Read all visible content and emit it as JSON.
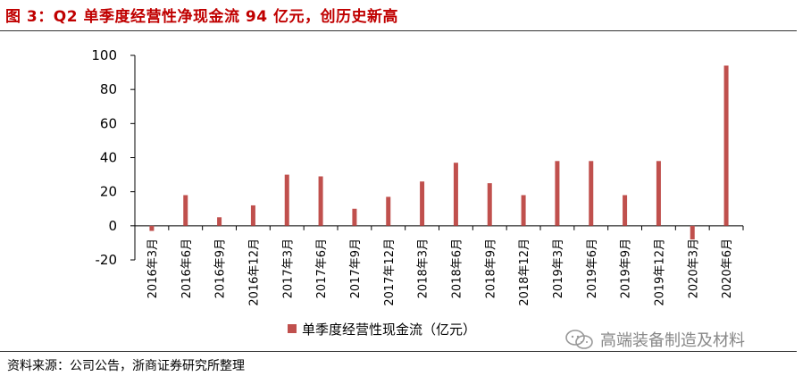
{
  "header": {
    "title": "图 3：Q2 单季度经营性净现金流 94 亿元，创历史新高"
  },
  "footer": {
    "source": "资料来源：公司公告，浙商证券研究所整理"
  },
  "watermark": {
    "text": "高端装备制造及材料",
    "icon": "wechat-icon"
  },
  "colors": {
    "bar": "#c0504d",
    "title": "#c00000"
  },
  "chart_data": {
    "type": "bar",
    "title": "",
    "xlabel": "",
    "ylabel": "",
    "ylim": [
      -20,
      100
    ],
    "yticks": [
      -20,
      0,
      20,
      40,
      60,
      80,
      100
    ],
    "grid": false,
    "legend": "bottom",
    "categories": [
      "2016年3月",
      "2016年6月",
      "2016年9月",
      "2016年12月",
      "2017年3月",
      "2017年6月",
      "2017年9月",
      "2017年12月",
      "2018年3月",
      "2018年6月",
      "2018年9月",
      "2018年12月",
      "2019年3月",
      "2019年6月",
      "2019年9月",
      "2019年12月",
      "2020年3月",
      "2020年6月"
    ],
    "series": [
      {
        "name": "单季度经营性现金流（亿元）",
        "values": [
          -3,
          18,
          5,
          12,
          30,
          29,
          10,
          17,
          26,
          37,
          25,
          18,
          38,
          38,
          18,
          38,
          -8,
          94
        ]
      }
    ]
  }
}
